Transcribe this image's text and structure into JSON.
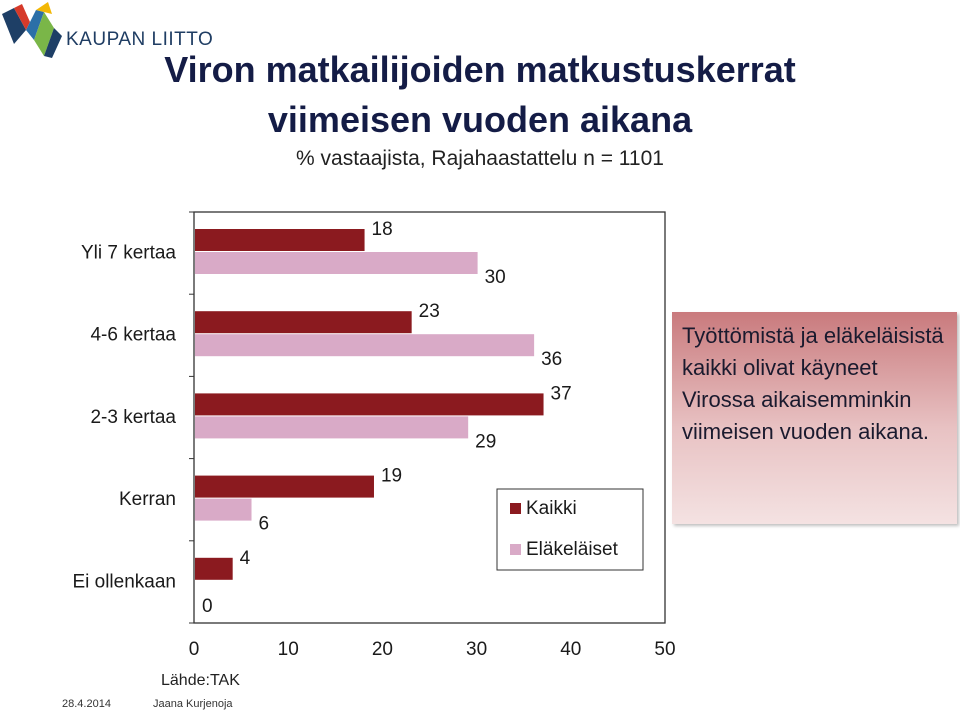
{
  "header": {
    "logo_text": "KAUPAN LIITTO"
  },
  "title_line1": "Viron matkailijoiden matkustuskerrat",
  "title_line2": "viimeisen vuoden aikana",
  "subtitle": "% vastaajista, Rajahaastattelu n = 1101",
  "chart_data": {
    "type": "bar",
    "orientation": "horizontal",
    "categories": [
      "Yli 7 kertaa",
      "4-6 kertaa",
      "2-3 kertaa",
      "Kerran",
      "Ei ollenkaan"
    ],
    "series": [
      {
        "name": "Kaikki",
        "values": [
          18,
          23,
          37,
          19,
          4
        ],
        "color": "#8b1a1f"
      },
      {
        "name": "Eläkeläiset",
        "values": [
          30,
          36,
          29,
          6,
          0
        ],
        "color": "#d9aac7"
      }
    ],
    "x_ticks": [
      0,
      10,
      20,
      30,
      40,
      50
    ],
    "xlim": [
      0,
      50
    ],
    "legend_position": "inside-bottom-right"
  },
  "callout": {
    "text": "Työttömistä ja eläkeläisistä kaikki olivat käyneet Virossa aikaisemminkin viimeisen vuoden aikana."
  },
  "footer": {
    "source": "Lähde:TAK",
    "date": "28.4.2014",
    "author": "Jaana Kurjenoja"
  }
}
